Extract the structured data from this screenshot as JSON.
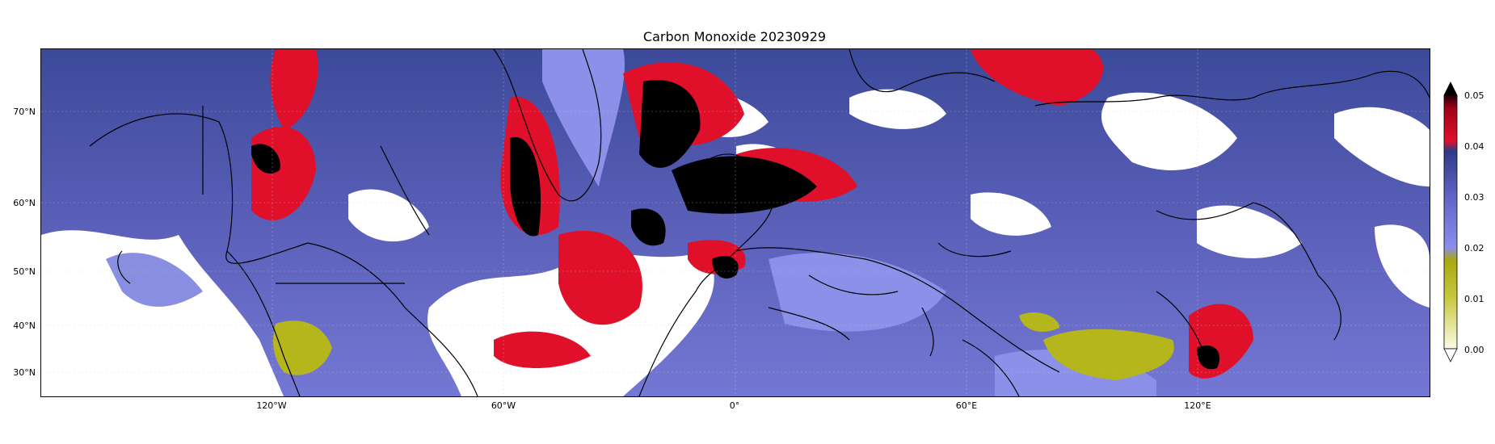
{
  "map": {
    "title": "Carbon Monoxide 20230929",
    "projection": "PlateCarree-like",
    "lon_range": [
      -180,
      180
    ],
    "lat_range": [
      25,
      80
    ],
    "lat_ticks": [
      {
        "value": 70,
        "label": "70°N"
      },
      {
        "value": 60,
        "label": "60°N"
      },
      {
        "value": 50,
        "label": "50°N"
      },
      {
        "value": 40,
        "label": "40°N"
      },
      {
        "value": 30,
        "label": "30°N"
      }
    ],
    "lon_ticks": [
      {
        "value": -120,
        "label": "120°W"
      },
      {
        "value": -60,
        "label": "60°W"
      },
      {
        "value": 0,
        "label": "0°"
      },
      {
        "value": 60,
        "label": "60°E"
      },
      {
        "value": 120,
        "label": "120°E"
      }
    ],
    "colors": {
      "background_field": "#6e72c8",
      "low": "#f4f4dc",
      "yellow": "#b4b414",
      "mid": "#7a7ee6",
      "dark": "#2c3a7a",
      "high": "#e0102a",
      "extreme": "#000000",
      "cloud_gap": "#ffffff"
    }
  },
  "colorbar": {
    "ticks": [
      "0.05",
      "0.04",
      "0.03",
      "0.02",
      "0.01",
      "0.00"
    ],
    "extend": "both"
  }
}
